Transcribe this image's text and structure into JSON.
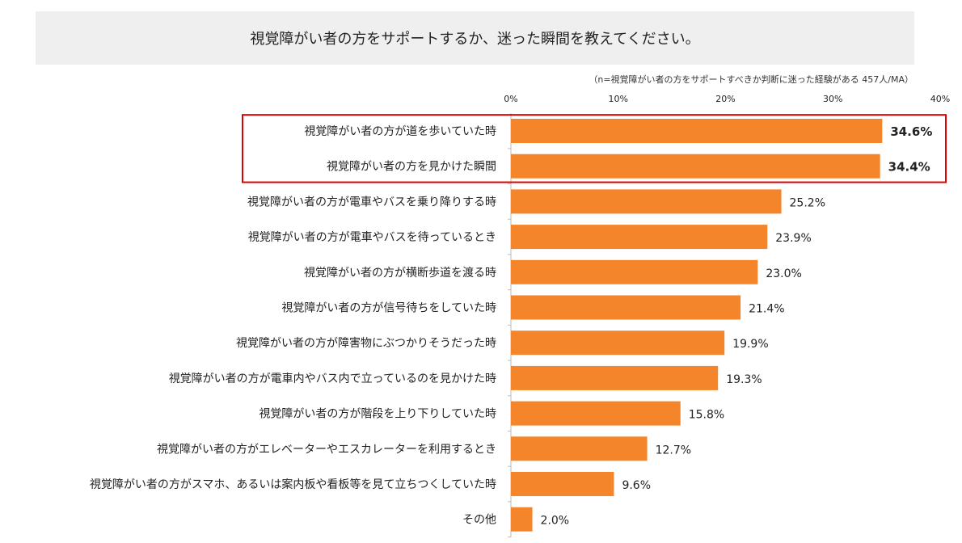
{
  "title": "視覚障がい者の方をサポートするか、迷った瞬間を教えてください。",
  "sample_note": "（n=視覚障がい者の方をサポートすべきか判断に迷った経験がある 457人/MA）",
  "colors": {
    "bar": "#F5852A",
    "highlight_frame": "#E00000",
    "title_band": "#EFEFEF"
  },
  "chart_data": {
    "type": "bar",
    "orientation": "horizontal",
    "categories": [
      "視覚障がい者の方が道を歩いていた時",
      "視覚障がい者の方を見かけた瞬間",
      "視覚障がい者の方が電車やバスを乗り降りする時",
      "視覚障がい者の方が電車やバスを待っているとき",
      "視覚障がい者の方が横断歩道を渡る時",
      "視覚障がい者の方が信号待ちをしていた時",
      "視覚障がい者の方が障害物にぶつかりそうだった時",
      "視覚障がい者の方が電車内やバス内で立っているのを見かけた時",
      "視覚障がい者の方が階段を上り下りしていた時",
      "視覚障がい者の方がエレベーターやエスカレーターを利用するとき",
      "視覚障がい者の方がスマホ、あるいは案内板や看板等を見て立ちつくしていた時",
      "その他"
    ],
    "values": [
      34.6,
      34.4,
      25.2,
      23.9,
      23.0,
      21.4,
      19.9,
      19.3,
      15.8,
      12.7,
      9.6,
      2.0
    ],
    "value_labels": [
      "34.6%",
      "34.4%",
      "25.2%",
      "23.9%",
      "23.0%",
      "21.4%",
      "19.9%",
      "19.3%",
      "15.8%",
      "12.7%",
      "9.6%",
      "2.0%"
    ],
    "highlighted": [
      0,
      1
    ],
    "xlim": [
      0,
      40
    ],
    "ticks": [
      0,
      10,
      20,
      30,
      40
    ],
    "tick_labels": [
      "0%",
      "10%",
      "20%",
      "30%",
      "40%"
    ],
    "grid": false,
    "legend": "none"
  }
}
